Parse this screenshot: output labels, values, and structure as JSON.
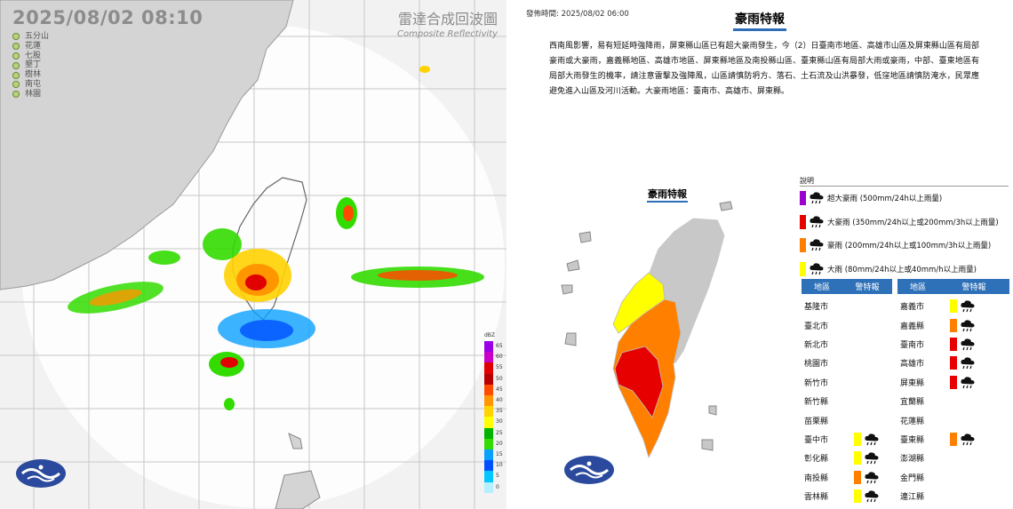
{
  "radar": {
    "timestamp": "2025/08/02  08:10",
    "title_zh": "雷達合成回波圖",
    "title_en": "Composite Reflectivity",
    "stations": [
      "五分山",
      "花蓮",
      "七股",
      "墾丁",
      "樹林",
      "南屯",
      "林園"
    ],
    "scale": {
      "unit": "dBZ",
      "values": [
        65,
        60,
        55,
        50,
        45,
        40,
        35,
        30,
        25,
        20,
        15,
        10,
        5,
        0
      ],
      "colors": [
        "#9a00e6",
        "#c800c8",
        "#e10000",
        "#b90000",
        "#ff4b00",
        "#ff9600",
        "#ffd200",
        "#ffff00",
        "#00b400",
        "#32dc00",
        "#0aa0ff",
        "#0050ff",
        "#00c8ff",
        "#b4f0ff"
      ]
    }
  },
  "warning": {
    "issued": "發佈時間: 2025/08/02 06:00",
    "title": "豪雨特報",
    "description": "西南風影響，易有短延時強降雨，屏東縣山區已有超大豪雨發生，今（2）日臺南市地區、高雄市山區及屏東縣山區有局部豪雨或大豪雨，嘉義縣地區、高雄市地區、屏東縣地區及南投縣山區、臺東縣山區有局部大雨或豪雨，中部、臺東地區有局部大雨發生的機率，請注意雷擊及強陣風，山區請慎防坍方、落石、土石流及山洪暴發，低窪地區請慎防淹水，民眾應避免進入山區及河川活動。大豪雨地區：臺南市、高雄市、屏東縣。",
    "map_title": "豪雨特報",
    "legend_title": "說明",
    "legend": [
      {
        "label": "超大豪雨 (500mm/24h以上雨量)",
        "color": "#9b00cc",
        "icon": "extreme-rain-icon"
      },
      {
        "label": "大豪雨 (350mm/24h以上或200mm/3h以上雨量)",
        "color": "#e60000",
        "icon": "torrential-rain-icon"
      },
      {
        "label": "豪雨 (200mm/24h以上或100mm/3h以上雨量)",
        "color": "#ff8000",
        "icon": "extremely-heavy-rain-icon"
      },
      {
        "label": "大雨 (80mm/24h以上或40mm/h以上雨量)",
        "color": "#ffff00",
        "icon": "heavy-rain-icon"
      }
    ],
    "table_header": {
      "area": "地區",
      "level": "警特報"
    },
    "counties_left": [
      {
        "name": "基隆市",
        "level": ""
      },
      {
        "name": "臺北市",
        "level": ""
      },
      {
        "name": "新北市",
        "level": ""
      },
      {
        "name": "桃園市",
        "level": ""
      },
      {
        "name": "新竹市",
        "level": ""
      },
      {
        "name": "新竹縣",
        "level": ""
      },
      {
        "name": "苗栗縣",
        "level": ""
      },
      {
        "name": "臺中市",
        "level": "大雨"
      },
      {
        "name": "彰化縣",
        "level": "大雨"
      },
      {
        "name": "南投縣",
        "level": "豪雨"
      },
      {
        "name": "雲林縣",
        "level": "大雨"
      }
    ],
    "counties_right": [
      {
        "name": "嘉義市",
        "level": "大雨"
      },
      {
        "name": "嘉義縣",
        "level": "豪雨"
      },
      {
        "name": "臺南市",
        "level": "大豪雨"
      },
      {
        "name": "高雄市",
        "level": "大豪雨"
      },
      {
        "name": "屏東縣",
        "level": "大豪雨"
      },
      {
        "name": "宜蘭縣",
        "level": ""
      },
      {
        "name": "花蓮縣",
        "level": ""
      },
      {
        "name": "臺東縣",
        "level": "豪雨"
      },
      {
        "name": "澎湖縣",
        "level": ""
      },
      {
        "name": "金門縣",
        "level": ""
      },
      {
        "name": "連江縣",
        "level": ""
      }
    ],
    "level_colors": {
      "超大豪雨": "#9b00cc",
      "大豪雨": "#e60000",
      "豪雨": "#ff8000",
      "大雨": "#ffff00"
    }
  }
}
